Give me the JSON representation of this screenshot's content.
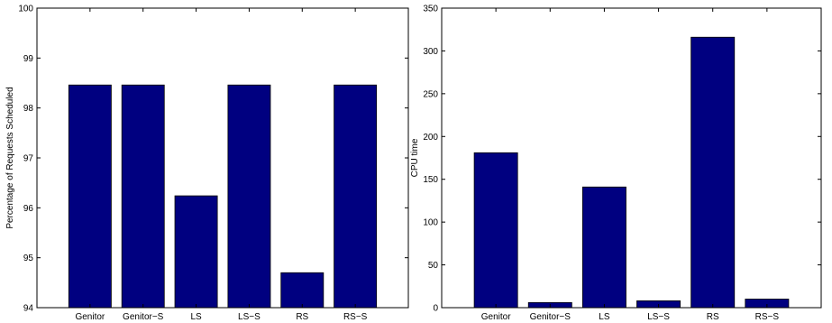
{
  "chart_data": [
    {
      "type": "bar",
      "categories": [
        "Genitor",
        "Genitor−S",
        "LS",
        "LS−S",
        "RS",
        "RS−S"
      ],
      "values": [
        98.46,
        98.46,
        96.24,
        98.46,
        94.7,
        98.46
      ],
      "title": "",
      "xlabel": "",
      "ylabel": "Percentage of Requests Scheduled",
      "ylim": [
        94,
        100
      ],
      "yticks": [
        94,
        95,
        96,
        97,
        98,
        99,
        100
      ],
      "bar_color": "#000080",
      "grid": false
    },
    {
      "type": "bar",
      "categories": [
        "Genitor",
        "Genitor−S",
        "LS",
        "LS−S",
        "RS",
        "RS−S"
      ],
      "values": [
        181,
        6,
        141,
        8,
        316,
        10
      ],
      "title": "",
      "xlabel": "",
      "ylabel": "CPU time",
      "ylim": [
        0,
        350
      ],
      "yticks": [
        0,
        50,
        100,
        150,
        200,
        250,
        300,
        350
      ],
      "bar_color": "#000080",
      "grid": false
    }
  ]
}
